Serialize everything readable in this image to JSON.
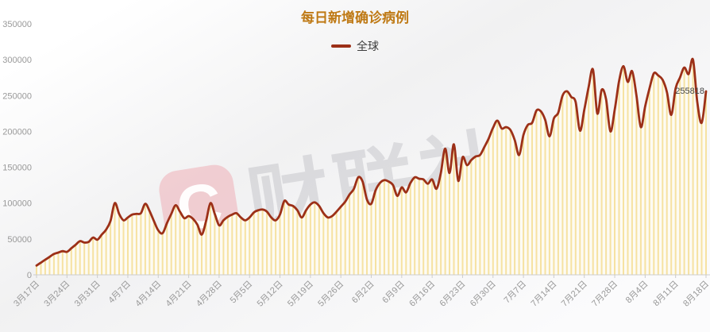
{
  "title": "每日新增确诊病例",
  "legend": {
    "name": "全球",
    "marker_color": "#9c3018"
  },
  "watermark": {
    "logo_letter": "C",
    "text": "财联社"
  },
  "end_label": "255818",
  "colors": {
    "title": "#bf7a16",
    "line": "#9c3018",
    "stripe": "#f6e2a2",
    "area_fill": "#fdfbf3",
    "axis_line": "#cccccc",
    "axis_label": "#999999",
    "end_label": "#444444"
  },
  "chart_data": {
    "type": "line",
    "title": "每日新增确诊病例",
    "series_name": "全球",
    "smooth": true,
    "grid": false,
    "legend_position": "top-center",
    "ylim": [
      0,
      350000
    ],
    "y_ticks": [
      0,
      50000,
      100000,
      150000,
      200000,
      250000,
      300000,
      350000
    ],
    "x_tick_labels": [
      "3月17日",
      "3月24日",
      "3月31日",
      "4月7日",
      "4月14日",
      "4月21日",
      "4月28日",
      "5月5日",
      "5月12日",
      "5月19日",
      "5月26日",
      "6月2日",
      "6月9日",
      "6月16日",
      "6月23日",
      "6月30日",
      "7月7日",
      "7月14日",
      "7月21日",
      "7月28日",
      "8月4日",
      "8月11日",
      "8月18日"
    ],
    "x_tick_every_n_points": 7,
    "x_start": "3月17日",
    "x_end": "8月18日",
    "last_value_label": "255818",
    "values": [
      13000,
      17000,
      21000,
      25000,
      29000,
      31000,
      33000,
      32000,
      37000,
      42000,
      47000,
      45000,
      46000,
      52000,
      49000,
      56000,
      63000,
      75000,
      100000,
      85000,
      76000,
      80000,
      84000,
      85000,
      86000,
      99000,
      89000,
      75000,
      62000,
      58000,
      72000,
      85000,
      97000,
      88000,
      79000,
      82000,
      78000,
      70000,
      56000,
      75000,
      100000,
      85000,
      69000,
      76000,
      81000,
      84000,
      86000,
      80000,
      76000,
      80000,
      87000,
      90000,
      91000,
      88000,
      80000,
      76000,
      84000,
      103000,
      98000,
      96000,
      90000,
      80000,
      90000,
      98000,
      101000,
      96000,
      86000,
      80000,
      82000,
      88000,
      95000,
      102000,
      112000,
      120000,
      136000,
      130000,
      105000,
      99000,
      118000,
      128000,
      132000,
      130000,
      125000,
      110000,
      122000,
      115000,
      128000,
      136000,
      134000,
      133000,
      127000,
      133000,
      120000,
      142000,
      176000,
      142000,
      182000,
      131000,
      164000,
      153000,
      160000,
      165000,
      167000,
      178000,
      190000,
      205000,
      215000,
      204000,
      206000,
      202000,
      188000,
      167000,
      195000,
      209000,
      212000,
      229000,
      228000,
      216000,
      193000,
      218000,
      226000,
      250000,
      256000,
      248000,
      241000,
      201000,
      230000,
      262000,
      286000,
      225000,
      258000,
      245000,
      200000,
      230000,
      270000,
      291000,
      269000,
      284000,
      250000,
      206000,
      235000,
      260000,
      281000,
      278000,
      272000,
      255000,
      223000,
      260000,
      275000,
      289000,
      280000,
      300000,
      240000,
      212000,
      255818
    ]
  }
}
